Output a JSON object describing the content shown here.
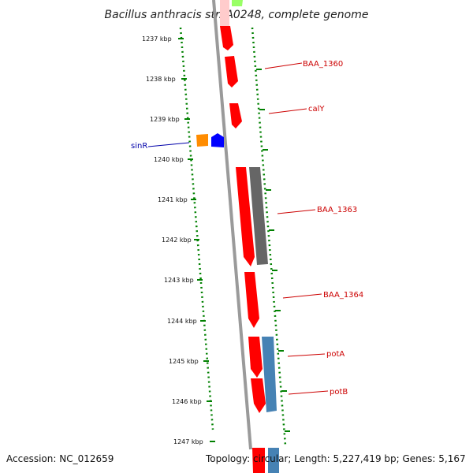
{
  "title": "Bacillus anthracis str. A0248, complete genome",
  "footer": {
    "accession": "Accession: NC_012659",
    "summary": "Topology: circular; Length: 5,227,419 bp; Genes: 5,167"
  },
  "ticks": [
    "1237 kbp",
    "1238 kbp",
    "1239 kbp",
    "1240 kbp",
    "1241 kbp",
    "1242 kbp",
    "1243 kbp",
    "1244 kbp",
    "1245 kbp",
    "1246 kbp",
    "1247 kbp"
  ],
  "gene_labels": {
    "BAA_1360": "BAA_1360",
    "calY": "calY",
    "sinR": "sinR",
    "BAA_1363": "BAA_1363",
    "BAA_1364": "BAA_1364",
    "potA": "potA",
    "potB": "potB"
  },
  "colors": {
    "cds_forward": "#ff0000",
    "cds_dark": "#666666",
    "cds_blue": "#4682b4",
    "orange_feature": "#ff8c00",
    "blue_feature": "#0000ff",
    "tick": "#007700",
    "label_red": "#cc0000",
    "label_blue": "#0000aa",
    "backbone": "#808080"
  }
}
